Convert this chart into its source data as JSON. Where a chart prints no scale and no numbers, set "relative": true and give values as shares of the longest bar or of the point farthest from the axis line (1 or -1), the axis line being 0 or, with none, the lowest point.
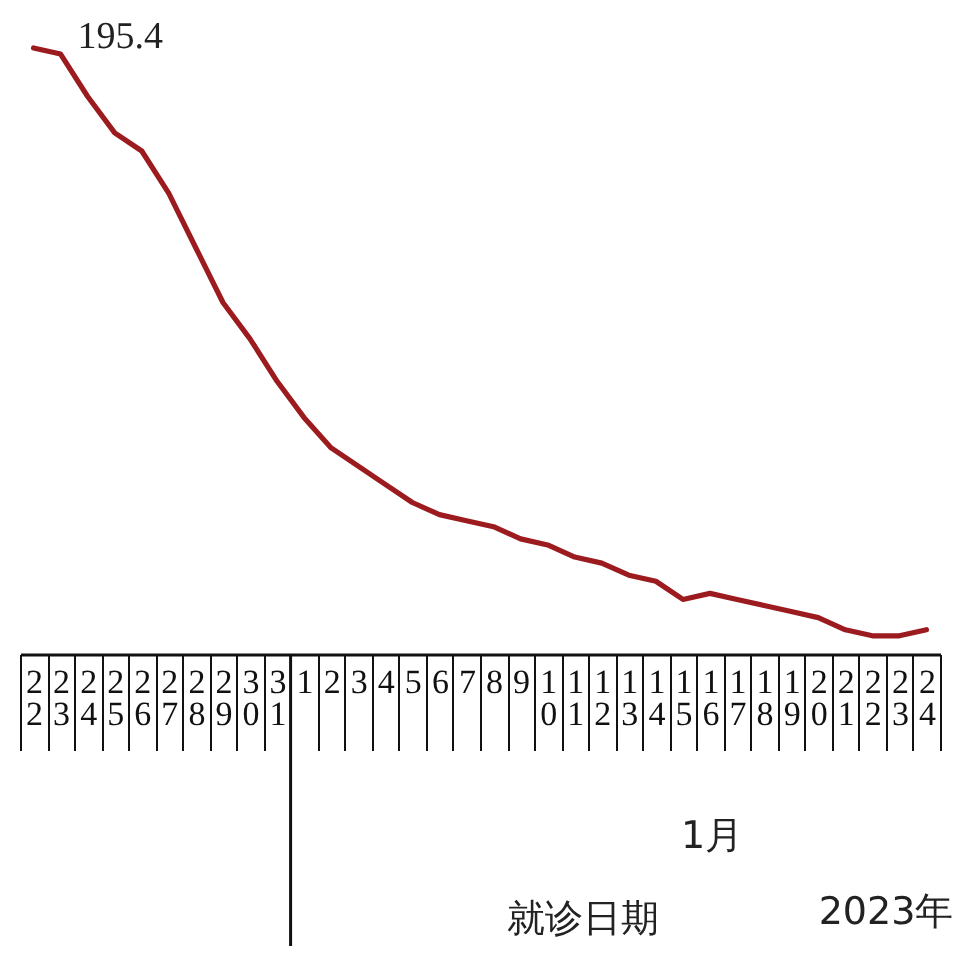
{
  "chart_data": {
    "type": "line",
    "xlabel": "就诊日期",
    "relative": true,
    "annotations": [
      {
        "text": "195.4",
        "x": "22",
        "y": 1
      },
      "1月",
      "2023年"
    ],
    "categories": [
      "22",
      "23",
      "24",
      "25",
      "26",
      "27",
      "28",
      "29",
      "30",
      "31",
      "1",
      "2",
      "3",
      "4",
      "5",
      "6",
      "7",
      "8",
      "9",
      "10",
      "11",
      "12",
      "13",
      "14",
      "15",
      "16",
      "17",
      "18",
      "19",
      "20",
      "21",
      "22",
      "23",
      "24"
    ],
    "series": [
      {
        "color": "#9b1b1f",
        "values": [
          1,
          0.99,
          0.92,
          0.86,
          0.83,
          0.76,
          0.67,
          0.58,
          0.52,
          0.45,
          0.39,
          0.34,
          0.31,
          0.28,
          0.25,
          0.23,
          0.22,
          0.21,
          0.19,
          0.18,
          0.16,
          0.15,
          0.13,
          0.12,
          0.09,
          0.1,
          0.09,
          0.08,
          0.07,
          0.06,
          0.04,
          0.03,
          0.03,
          0.04
        ]
      }
    ]
  }
}
